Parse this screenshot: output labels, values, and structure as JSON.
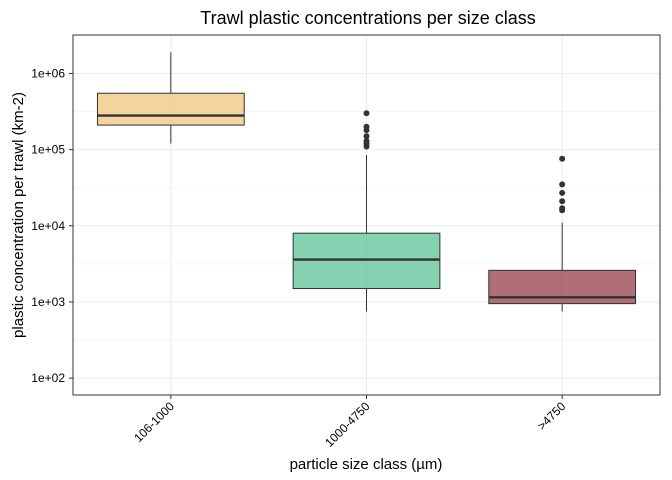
{
  "chart_data": {
    "type": "boxplot",
    "title": "Trawl plastic concentrations per size class",
    "xlabel": "particle size class (µm)",
    "ylabel": "plastic concentration per trawl (km-2)",
    "y_scale": "log10",
    "ylim": [
      60,
      3200000
    ],
    "y_ticks": [
      100,
      1000,
      10000,
      100000,
      1000000
    ],
    "y_tick_labels": [
      "1e+02",
      "1e+03",
      "1e+04",
      "1e+05",
      "1e+06"
    ],
    "categories": [
      "106-1000",
      "1000-4750",
      ">4750"
    ],
    "grid": true,
    "legend": "none",
    "boxes": [
      {
        "category": "106-1000",
        "color": "#f0be6e",
        "whisker_low": 120000,
        "q1": 210000,
        "median": 280000,
        "q3": 550000,
        "whisker_high": 1900000,
        "outliers": []
      },
      {
        "category": "1000-4750",
        "color": "#4dbb8d",
        "whisker_low": 750,
        "q1": 1500,
        "median": 3600,
        "q3": 8000,
        "whisker_high": 85000,
        "outliers": [
          110000,
          120000,
          130000,
          150000,
          180000,
          200000,
          300000
        ]
      },
      {
        "category": ">4750",
        "color": "#8b2a36",
        "whisker_low": 750,
        "q1": 950,
        "median": 1150,
        "q3": 2600,
        "whisker_high": 11000,
        "outliers": [
          16000,
          17000,
          21000,
          27000,
          35000,
          76000
        ]
      }
    ]
  }
}
